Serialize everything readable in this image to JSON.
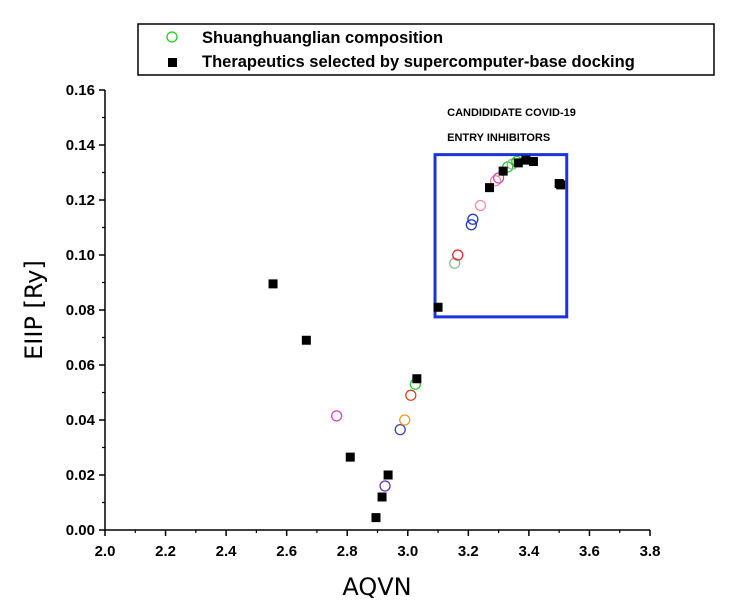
{
  "chart_data": {
    "type": "scatter",
    "title": "",
    "xlabel": "AQVN",
    "ylabel": "EIIP [Ry]",
    "xlim": [
      2.0,
      3.8
    ],
    "ylim": [
      0.0,
      0.16
    ],
    "x_ticks": [
      "2.0",
      "2.2",
      "2.4",
      "2.6",
      "2.8",
      "3.0",
      "3.2",
      "3.4",
      "3.6",
      "3.8"
    ],
    "y_ticks": [
      "0.00",
      "0.02",
      "0.04",
      "0.06",
      "0.08",
      "0.10",
      "0.12",
      "0.14",
      "0.16"
    ],
    "grid": false,
    "legend_position": "top",
    "series": [
      {
        "name": "Shuanghuanglian composition",
        "marker": "open-circle",
        "legend_color": "#22cc22",
        "points": [
          {
            "x": 2.765,
            "y": 0.0415,
            "color": "#cc44cc"
          },
          {
            "x": 2.925,
            "y": 0.016,
            "color": "#6633aa"
          },
          {
            "x": 2.975,
            "y": 0.0365,
            "color": "#3344bb"
          },
          {
            "x": 2.99,
            "y": 0.04,
            "color": "#ee9922"
          },
          {
            "x": 3.01,
            "y": 0.049,
            "color": "#cc4422"
          },
          {
            "x": 3.025,
            "y": 0.053,
            "color": "#22cc22"
          },
          {
            "x": 3.155,
            "y": 0.097,
            "color": "#88bb88"
          },
          {
            "x": 3.165,
            "y": 0.1,
            "color": "#ee2222"
          },
          {
            "x": 3.21,
            "y": 0.111,
            "color": "#2233cc"
          },
          {
            "x": 3.215,
            "y": 0.113,
            "color": "#2233cc"
          },
          {
            "x": 3.24,
            "y": 0.118,
            "color": "#ff88aa"
          },
          {
            "x": 3.29,
            "y": 0.127,
            "color": "#ee8888"
          },
          {
            "x": 3.3,
            "y": 0.128,
            "color": "#cc44cc"
          },
          {
            "x": 3.33,
            "y": 0.132,
            "color": "#22cc22"
          },
          {
            "x": 3.345,
            "y": 0.133,
            "color": "#88bb88"
          },
          {
            "x": 3.36,
            "y": 0.134,
            "color": "#22cc22"
          }
        ]
      },
      {
        "name": "Therapeutics selected by supercomputer-base docking",
        "marker": "filled-square",
        "legend_color": "#000000",
        "points": [
          {
            "x": 2.555,
            "y": 0.0895
          },
          {
            "x": 2.665,
            "y": 0.069
          },
          {
            "x": 2.81,
            "y": 0.0265
          },
          {
            "x": 2.895,
            "y": 0.0045
          },
          {
            "x": 2.915,
            "y": 0.012
          },
          {
            "x": 2.935,
            "y": 0.02
          },
          {
            "x": 3.03,
            "y": 0.055
          },
          {
            "x": 3.1,
            "y": 0.081
          },
          {
            "x": 3.27,
            "y": 0.1245
          },
          {
            "x": 3.315,
            "y": 0.1305
          },
          {
            "x": 3.365,
            "y": 0.1335
          },
          {
            "x": 3.39,
            "y": 0.1345
          },
          {
            "x": 3.415,
            "y": 0.134
          },
          {
            "x": 3.5,
            "y": 0.126
          },
          {
            "x": 3.505,
            "y": 0.1255
          }
        ]
      }
    ],
    "annotation": {
      "box": {
        "x0": 3.09,
        "x1": 3.525,
        "y0": 0.0775,
        "y1": 0.1365,
        "color": "#1a33dd"
      },
      "lines": [
        {
          "text": "CANDIDIDATE COVID-19",
          "x": 3.13,
          "y": 0.1505
        },
        {
          "text": "ENTRY INHIBITORS",
          "x": 3.13,
          "y": 0.1415
        }
      ]
    }
  }
}
